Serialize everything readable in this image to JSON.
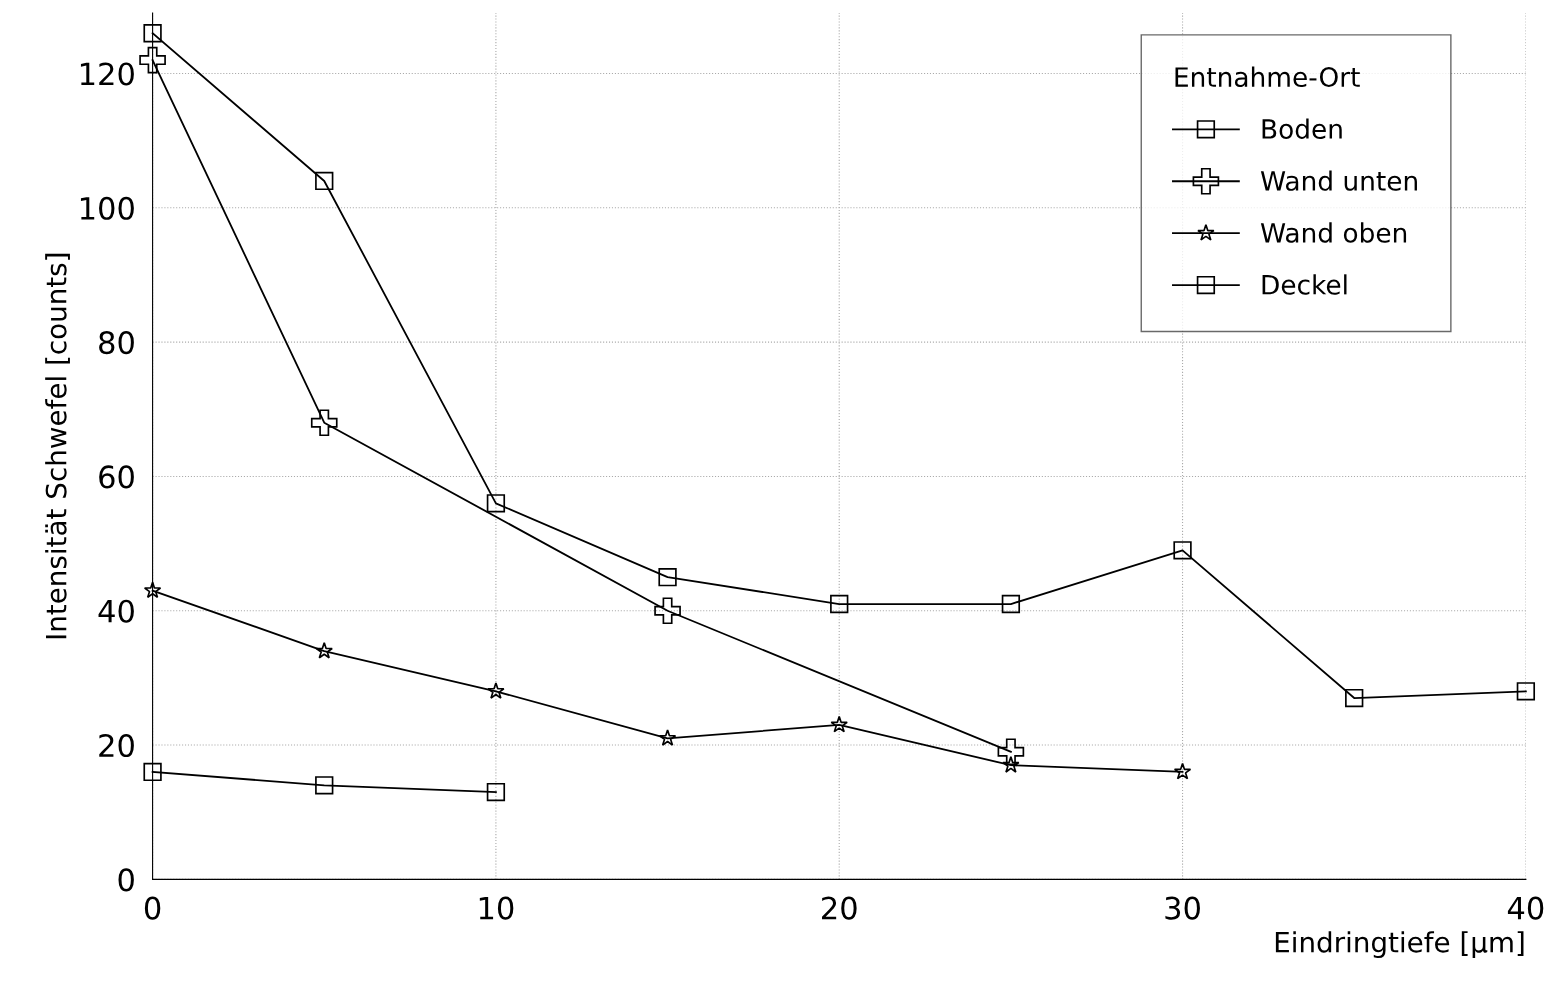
{
  "chart_data": {
    "type": "line",
    "xlabel": "Eindringtiefe [µm]",
    "ylabel": "Intensität Schwefel [counts]",
    "legend_title": "Entnahme-Ort",
    "legend": "top right",
    "grid": true,
    "line_style": "solid",
    "xlim": [
      0,
      40
    ],
    "xticks": [
      0,
      10,
      20,
      30,
      40
    ],
    "ylim": [
      0,
      129
    ],
    "yticks": [
      0,
      20,
      40,
      60,
      80,
      100,
      120
    ],
    "series": [
      {
        "name": "Boden",
        "color": "#000000",
        "marker": "square",
        "x": [
          0,
          5,
          10,
          15,
          20,
          25,
          30,
          35,
          40
        ],
        "values": [
          126,
          104,
          56,
          45,
          41,
          41,
          49,
          27,
          28
        ]
      },
      {
        "name": "Wand unten",
        "color": "#000000",
        "marker": "cross",
        "x": [
          0,
          5,
          15,
          25
        ],
        "values": [
          122,
          68,
          40,
          19
        ]
      },
      {
        "name": "Wand oben",
        "color": "#000000",
        "marker": "star",
        "x": [
          0,
          5,
          10,
          15,
          20,
          25,
          30
        ],
        "values": [
          43,
          34,
          28,
          21,
          23,
          17,
          16
        ]
      },
      {
        "name": "Deckel",
        "color": "#000000",
        "marker": "square",
        "x": [
          0,
          5,
          10
        ],
        "values": [
          16,
          14,
          13
        ]
      }
    ]
  }
}
